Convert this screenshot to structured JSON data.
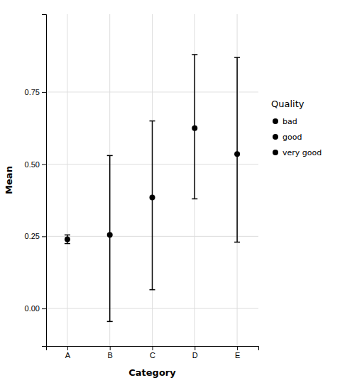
{
  "chart_data": {
    "type": "errorbar",
    "categories": [
      "A",
      "B",
      "C",
      "D",
      "E"
    ],
    "values": [
      0.24,
      0.255,
      0.385,
      0.625,
      0.535
    ],
    "errors_lower": [
      0.015,
      0.3,
      0.32,
      0.245,
      0.305
    ],
    "errors_upper": [
      0.015,
      0.275,
      0.265,
      0.255,
      0.335
    ],
    "color": "#000000",
    "marker": "circle",
    "xlabel": "Category",
    "ylabel": "Mean",
    "legend": "right",
    "legend_title": "Quality",
    "legend_labels": [
      "bad",
      "good",
      "very good"
    ],
    "ylim": [
      -0.13,
      1.02
    ],
    "yticks": [
      {
        "value": 0,
        "label": "0.00"
      },
      {
        "value": 0.25,
        "label": "0.25"
      },
      {
        "value": 0.5,
        "label": "0.50"
      },
      {
        "value": 0.75,
        "label": "0.75"
      }
    ],
    "grid": true
  }
}
